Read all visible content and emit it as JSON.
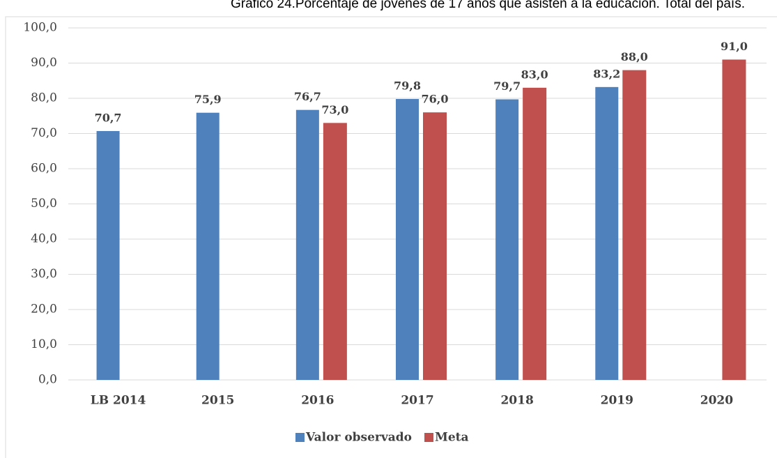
{
  "chart_data": {
    "type": "bar",
    "title": "Gráfico 24.Porcentaje de jóvenes de 17 años que asisten a la educación. Total del país.",
    "categories": [
      "LB 2014",
      "2015",
      "2016",
      "2017",
      "2018",
      "2019",
      "2020"
    ],
    "series": [
      {
        "name": "Valor observado",
        "color": "#4f81bd",
        "values": [
          70.7,
          75.9,
          76.7,
          79.8,
          79.7,
          83.2,
          null
        ],
        "value_labels": [
          "70,7",
          "75,9",
          "76,7",
          "79,8",
          "79,7",
          "83,2",
          null
        ]
      },
      {
        "name": "Meta",
        "color": "#c0504d",
        "values": [
          null,
          null,
          73.0,
          76.0,
          83.0,
          88.0,
          91.0
        ],
        "value_labels": [
          null,
          null,
          "73,0",
          "76,0",
          "83,0",
          "88,0",
          "91,0"
        ]
      }
    ],
    "ylim": [
      0,
      100
    ],
    "yticks": [
      {
        "value": 0,
        "label": "0,0"
      },
      {
        "value": 10,
        "label": "10,0"
      },
      {
        "value": 20,
        "label": "20,0"
      },
      {
        "value": 30,
        "label": "30,0"
      },
      {
        "value": 40,
        "label": "40,0"
      },
      {
        "value": 50,
        "label": "50,0"
      },
      {
        "value": 60,
        "label": "60,0"
      },
      {
        "value": 70,
        "label": "70,0"
      },
      {
        "value": 80,
        "label": "80,0"
      },
      {
        "value": 90,
        "label": "90,0"
      },
      {
        "value": 100,
        "label": "100,0"
      }
    ],
    "grid": true,
    "legend": "bottom"
  }
}
